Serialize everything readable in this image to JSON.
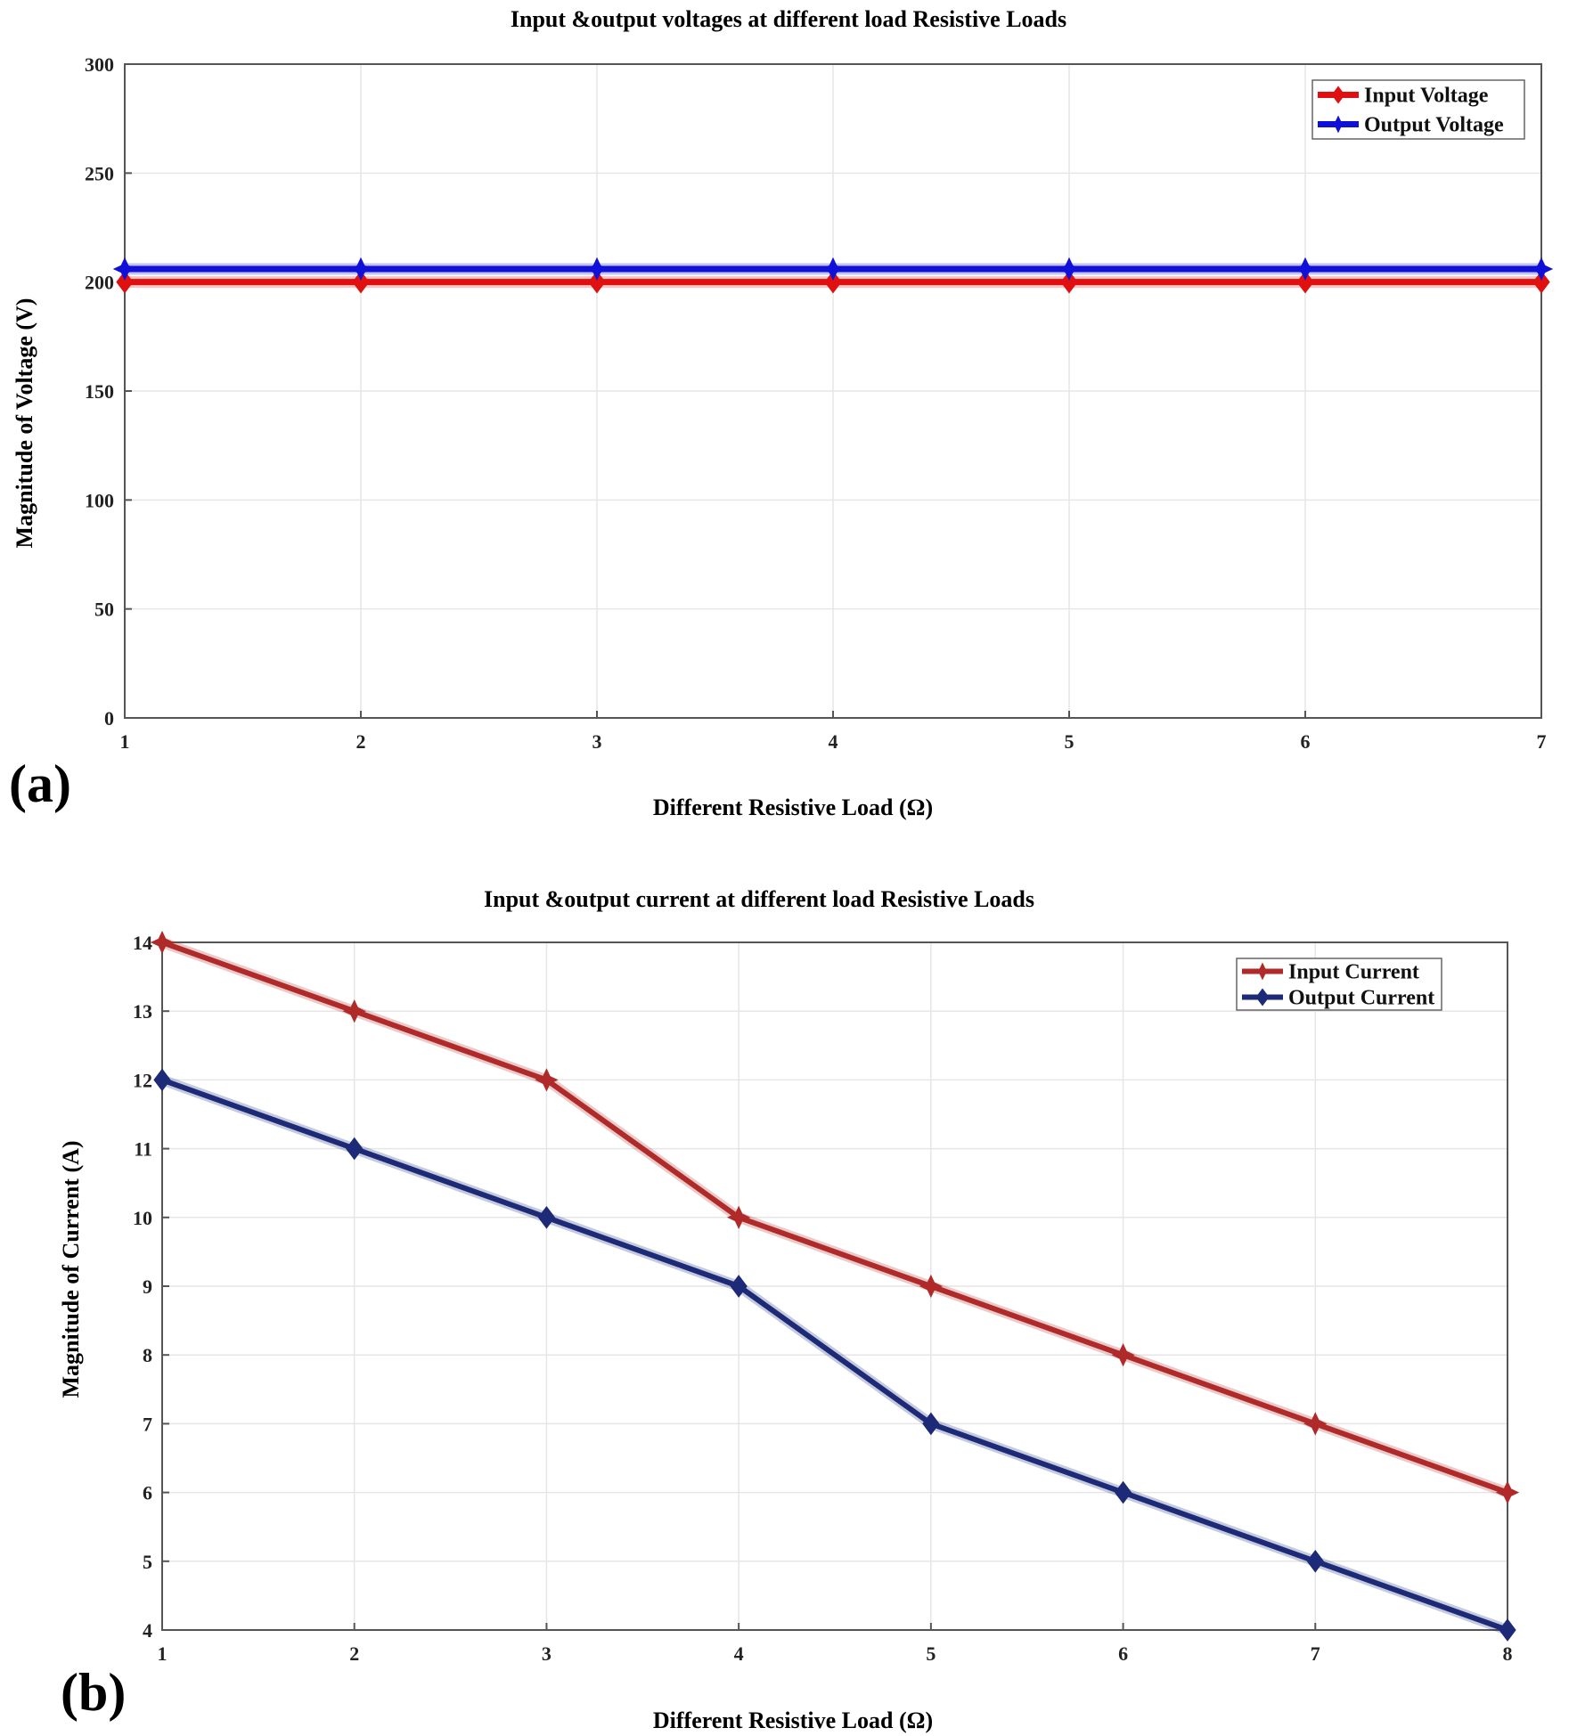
{
  "chart_data": [
    {
      "type": "line",
      "panel_label": "(a)",
      "title": "Input &output voltages at different load Resistive Loads",
      "xlabel": "Different Resistive Load (Ω)",
      "ylabel": "Magnitude of Voltage (V)",
      "x": [
        1,
        2,
        3,
        4,
        5,
        6,
        7
      ],
      "xlim": [
        1,
        7
      ],
      "ylim": [
        0,
        300
      ],
      "xticks": [
        1,
        2,
        3,
        4,
        5,
        6,
        7
      ],
      "yticks": [
        0,
        50,
        100,
        150,
        200,
        250,
        300
      ],
      "grid": true,
      "legend_position": "top-right",
      "series": [
        {
          "name": "Input Voltage",
          "color": "#e01010",
          "marker": "diamond",
          "values": [
            200,
            200,
            200,
            200,
            200,
            200,
            200
          ]
        },
        {
          "name": "Output Voltage",
          "color": "#1010d8",
          "marker": "star",
          "values": [
            206,
            206,
            206,
            206,
            206,
            206,
            206
          ]
        }
      ]
    },
    {
      "type": "line",
      "panel_label": "(b)",
      "title": "Input &output current at different load Resistive Loads",
      "xlabel": "Different Resistive Load (Ω)",
      "ylabel": "Magnitude of Current (A)",
      "x": [
        1,
        2,
        3,
        4,
        5,
        6,
        7,
        8
      ],
      "xlim": [
        1,
        8
      ],
      "ylim": [
        4,
        14
      ],
      "xticks": [
        1,
        2,
        3,
        4,
        5,
        6,
        7,
        8
      ],
      "yticks": [
        4,
        5,
        6,
        7,
        8,
        9,
        10,
        11,
        12,
        13,
        14
      ],
      "grid": true,
      "legend_position": "top-right",
      "series": [
        {
          "name": "Input Current",
          "color": "#b02a2a",
          "marker": "star",
          "values": [
            14,
            13,
            12,
            10,
            9,
            8,
            7,
            6
          ]
        },
        {
          "name": "Output Current",
          "color": "#1c2a78",
          "marker": "diamond",
          "values": [
            12,
            11,
            10,
            9,
            7,
            6,
            5,
            4
          ]
        }
      ]
    }
  ]
}
